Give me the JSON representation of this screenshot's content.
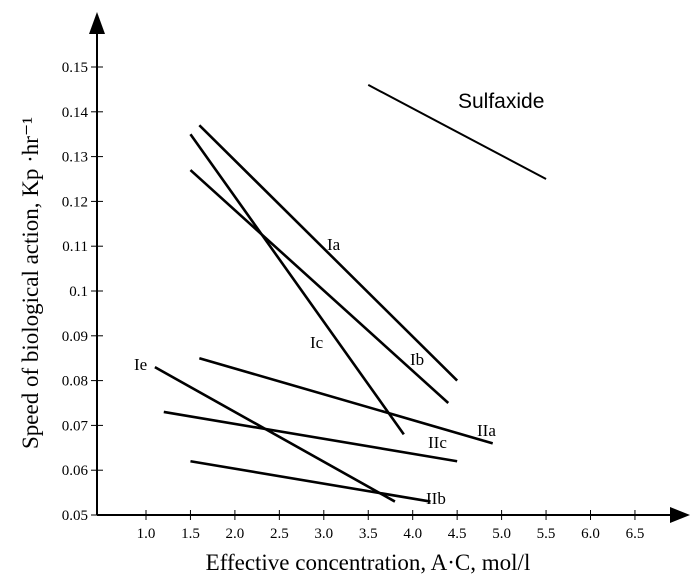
{
  "chart_data": {
    "type": "line",
    "title": "",
    "xlabel": "Effective concentration, A·C, mol/l",
    "ylabel": "Speed of biological action, Kp ·hr⁻¹",
    "xlim": [
      0.5,
      7.0
    ],
    "ylim": [
      0.05,
      0.155
    ],
    "x_ticks": [
      "1.0",
      "1.5",
      "2.0",
      "2.5",
      "3.0",
      "3.5",
      "4.0",
      "4.5",
      "5.0",
      "5.5",
      "6.0",
      "6.5"
    ],
    "y_ticks": [
      "0.05",
      "0.06",
      "0.07",
      "0.08",
      "0.09",
      "0.1",
      "0.11",
      "0.12",
      "0.13",
      "0.14",
      "0.15"
    ],
    "grid": false,
    "colors": {
      "line": "#000000",
      "background": "#ffffff"
    },
    "series": [
      {
        "name": "Sulfaxide",
        "x": [
          3.5,
          5.5
        ],
        "y": [
          0.146,
          0.125
        ]
      },
      {
        "name": "Ia",
        "x": [
          1.6,
          4.5
        ],
        "y": [
          0.137,
          0.08
        ]
      },
      {
        "name": "Ib",
        "x": [
          1.5,
          4.4
        ],
        "y": [
          0.127,
          0.075
        ]
      },
      {
        "name": "Ic",
        "x": [
          1.5,
          3.9
        ],
        "y": [
          0.135,
          0.068
        ]
      },
      {
        "name": "Ie",
        "x": [
          1.1,
          3.8
        ],
        "y": [
          0.083,
          0.053
        ]
      },
      {
        "name": "IIa",
        "x": [
          1.6,
          4.9
        ],
        "y": [
          0.085,
          0.066
        ]
      },
      {
        "name": "IIc",
        "x": [
          1.2,
          4.5
        ],
        "y": [
          0.073,
          0.062
        ]
      },
      {
        "name": "IIb",
        "x": [
          1.5,
          4.2
        ],
        "y": [
          0.062,
          0.053
        ]
      }
    ]
  }
}
